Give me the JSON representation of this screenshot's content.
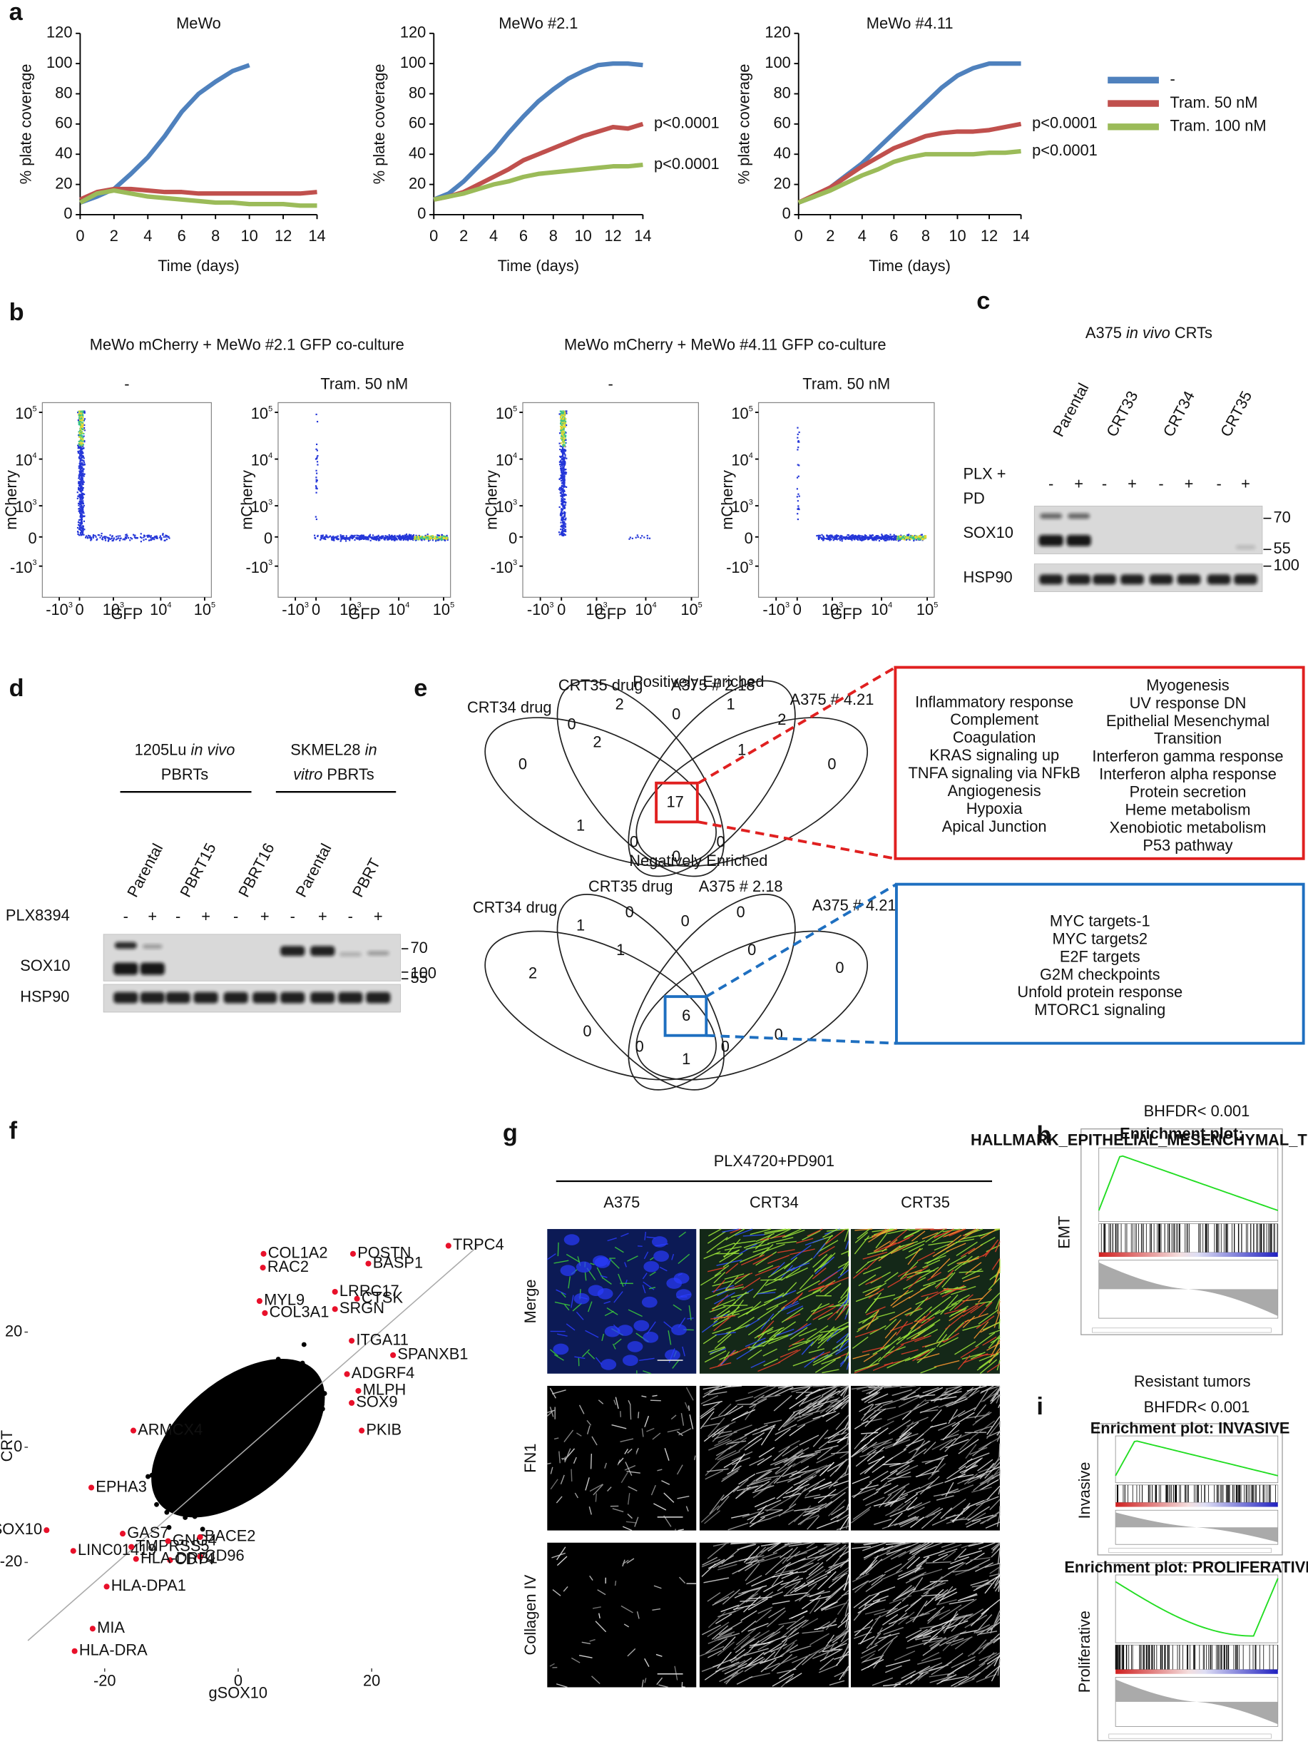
{
  "panel_labels": [
    "a",
    "b",
    "c",
    "d",
    "e",
    "f",
    "g",
    "h",
    "i"
  ],
  "chart_data": [
    {
      "type": "line",
      "title": "MeWo",
      "xlabel": "Time (days)",
      "ylabel": "% plate coverage",
      "x": [
        0,
        1,
        2,
        3,
        4,
        5,
        6,
        7,
        8,
        9,
        10,
        11,
        12,
        13,
        14
      ],
      "xlim": [
        0,
        14
      ],
      "ylim": [
        0,
        120
      ],
      "xticks": [
        0,
        2,
        4,
        6,
        8,
        10,
        12,
        14
      ],
      "yticks": [
        0,
        20,
        40,
        60,
        80,
        100,
        120
      ],
      "series": [
        {
          "name": "-",
          "color": "#4f81bd",
          "values": [
            8,
            12,
            17,
            27,
            38,
            52,
            68,
            80,
            88,
            95,
            99,
            null,
            null,
            null,
            null
          ]
        },
        {
          "name": "Tram. 50 nM",
          "color": "#c0504d",
          "values": [
            10,
            15,
            17,
            17,
            16,
            15,
            15,
            14,
            14,
            14,
            14,
            14,
            14,
            14,
            15
          ]
        },
        {
          "name": "Tram. 100 nM",
          "color": "#9bbb59",
          "values": [
            8,
            14,
            16,
            14,
            12,
            11,
            10,
            9,
            8,
            8,
            7,
            7,
            7,
            6,
            6
          ]
        }
      ]
    },
    {
      "type": "line",
      "title": "MeWo #2.1",
      "xlabel": "Time (days)",
      "ylabel": "% plate coverage",
      "x": [
        0,
        1,
        2,
        3,
        4,
        5,
        6,
        7,
        8,
        9,
        10,
        11,
        12,
        13,
        14
      ],
      "xlim": [
        0,
        14
      ],
      "ylim": [
        0,
        120
      ],
      "xticks": [
        0,
        2,
        4,
        6,
        8,
        10,
        12,
        14
      ],
      "yticks": [
        0,
        20,
        40,
        60,
        80,
        100,
        120
      ],
      "series": [
        {
          "name": "-",
          "color": "#4f81bd",
          "values": [
            10,
            14,
            22,
            32,
            42,
            54,
            65,
            75,
            83,
            90,
            95,
            99,
            100,
            100,
            99
          ]
        },
        {
          "name": "Tram. 50 nM",
          "color": "#c0504d",
          "values": [
            10,
            12,
            15,
            20,
            25,
            30,
            36,
            40,
            44,
            48,
            52,
            55,
            58,
            57,
            60
          ]
        },
        {
          "name": "Tram. 100 nM",
          "color": "#9bbb59",
          "values": [
            10,
            12,
            14,
            17,
            20,
            22,
            25,
            27,
            28,
            29,
            30,
            31,
            32,
            32,
            33
          ]
        }
      ],
      "annotations": [
        "p<0.0001",
        "p<0.0001"
      ]
    },
    {
      "type": "line",
      "title": "MeWo #4.11",
      "xlabel": "Time (days)",
      "ylabel": "% plate coverage",
      "x": [
        0,
        1,
        2,
        3,
        4,
        5,
        6,
        7,
        8,
        9,
        10,
        11,
        12,
        13,
        14
      ],
      "xlim": [
        0,
        14
      ],
      "ylim": [
        0,
        120
      ],
      "xticks": [
        0,
        2,
        4,
        6,
        8,
        10,
        12,
        14
      ],
      "yticks": [
        0,
        20,
        40,
        60,
        80,
        100,
        120
      ],
      "series": [
        {
          "name": "-",
          "color": "#4f81bd",
          "values": [
            8,
            12,
            18,
            26,
            34,
            44,
            54,
            64,
            74,
            84,
            92,
            97,
            100,
            100,
            100
          ]
        },
        {
          "name": "Tram. 50 nM",
          "color": "#c0504d",
          "values": [
            8,
            13,
            18,
            25,
            32,
            38,
            44,
            48,
            52,
            54,
            55,
            55,
            56,
            58,
            60
          ]
        },
        {
          "name": "Tram. 100 nM",
          "color": "#9bbb59",
          "values": [
            8,
            12,
            16,
            21,
            26,
            30,
            35,
            38,
            40,
            40,
            40,
            40,
            41,
            41,
            42
          ]
        }
      ],
      "annotations": [
        "p<0.0001",
        "p<0.0001"
      ]
    }
  ],
  "panel_b": {
    "headers": [
      "MeWo mCherry +  MeWo #2.1 GFP co-culture",
      "MeWo mCherry +  MeWo #4.11 GFP co-culture"
    ],
    "conditions": [
      "-",
      "Tram. 50 nM",
      "-",
      "Tram. 50 nM"
    ],
    "xlabel": "GFP",
    "ylabel": "mCherry",
    "yticks": [
      {
        "base": "10",
        "exp": "5"
      },
      {
        "base": "10",
        "exp": "4"
      },
      {
        "base": "10",
        "exp": "3"
      },
      {
        "base": "0"
      },
      {
        "base": "-10",
        "exp": "3"
      }
    ],
    "xticks": [
      {
        "base": "-10",
        "exp": "3"
      },
      {
        "base": "0"
      },
      {
        "base": "10",
        "exp": "3"
      },
      {
        "base": "10",
        "exp": "4"
      },
      {
        "base": "10",
        "exp": "5"
      }
    ]
  },
  "panel_c": {
    "title": [
      "A375 ",
      "in vivo",
      " CRTs"
    ],
    "lanes": [
      "Parental",
      "CRT33",
      "CRT34",
      "CRT35"
    ],
    "treatment": [
      "PLX +",
      "PD"
    ],
    "signs": [
      "-",
      "+",
      "-",
      "+",
      "-",
      "+",
      "-",
      "+"
    ],
    "proteins": [
      "SOX10",
      "HSP90"
    ],
    "markers": [
      "70",
      "55",
      "100"
    ]
  },
  "panel_d": {
    "groups": [
      {
        "line1": [
          "1205Lu ",
          "in vivo"
        ],
        "line2": [
          "PBRTs"
        ]
      },
      {
        "line1": [
          "SKMEL28 ",
          "in"
        ],
        "line2": [
          "vitro",
          " PBRTs"
        ]
      }
    ],
    "lanes": [
      "Parental",
      "PBRT15",
      "PBRT16",
      "Parental",
      "PBRT"
    ],
    "treatment": "PLX8394",
    "signs": [
      "-",
      "+",
      "-",
      "+",
      "-",
      "+",
      "-",
      "+",
      "-",
      "+"
    ],
    "proteins": [
      "SOX10",
      "HSP90"
    ],
    "markers": [
      "70",
      "55",
      "100"
    ]
  },
  "panel_e": {
    "positive": {
      "title": "Positively Enriched",
      "sets": [
        "CRT34 drug",
        "CRT35 drug",
        "A375 # 2.18",
        "A375 # 4.21"
      ],
      "counts": [
        0,
        2,
        0,
        0,
        1,
        2,
        0,
        2,
        1,
        17,
        1,
        0,
        0,
        0
      ],
      "terms": [
        [
          "Inflammatory response",
          "Complement",
          "Coagulation",
          "KRAS signaling up",
          "TNFA signaling via NFkB",
          "Angiogenesis",
          "Hypoxia",
          "Apical Junction"
        ],
        [
          "Myogenesis",
          "UV response DN",
          "Epithelial Mesenchymal",
          "Transition",
          "Interferon gamma response",
          "Interferon alpha response",
          "Protein secretion",
          "Heme metabolism",
          "Xenobiotic metabolism",
          "P53 pathway"
        ]
      ]
    },
    "negative": {
      "title": "Negatively Enriched",
      "sets": [
        "CRT34 drug",
        "CRT35 drug",
        "A375 # 2.18",
        "A375 # 4.21"
      ],
      "counts": [
        1,
        0,
        0,
        0,
        2,
        1,
        0,
        0,
        6,
        0,
        0,
        0,
        0,
        1
      ],
      "terms": [
        [
          "MYC targets-1",
          "MYC targets2",
          "E2F targets",
          "G2M checkpoints",
          "Unfold protein response",
          "MTORC1 signaling"
        ]
      ]
    }
  },
  "panel_f": {
    "xlabel": "gSOX10",
    "ylabel": "CRT",
    "xlim": [
      -31.5,
      37.3
    ],
    "ylim": [
      -38.4,
      40.8
    ],
    "xticks": [
      -20,
      0,
      20
    ],
    "yticks": [
      -20,
      0,
      20
    ],
    "genes": [
      {
        "name": "COL1A2",
        "x": 3.8,
        "y": 33.6,
        "color": "#111111"
      },
      {
        "name": "RAC2",
        "x": 3.7,
        "y": 31.2,
        "color": "#111111"
      },
      {
        "name": "POSTN",
        "x": 17.2,
        "y": 33.6,
        "color": "#e8102a"
      },
      {
        "name": "BASP1",
        "x": 19.5,
        "y": 31.9,
        "color": "#e8102a"
      },
      {
        "name": "TRPC4",
        "x": 31.5,
        "y": 35,
        "color": "#e8102a"
      },
      {
        "name": "MYL9",
        "x": 3.2,
        "y": 25.4,
        "color": "#111111"
      },
      {
        "name": "COL3A1",
        "x": 4,
        "y": 23.3,
        "color": "#111111"
      },
      {
        "name": "LRRC17",
        "x": 14.5,
        "y": 27,
        "color": "#111111"
      },
      {
        "name": "CTSK",
        "x": 17.8,
        "y": 25.8,
        "color": "#e8102a"
      },
      {
        "name": "SRGN",
        "x": 14.5,
        "y": 24,
        "color": "#111111"
      },
      {
        "name": "ITGA11",
        "x": 17,
        "y": 18.5,
        "color": "#111111"
      },
      {
        "name": "SPANXB1",
        "x": 23.2,
        "y": 16,
        "color": "#111111"
      },
      {
        "name": "ADGRF4",
        "x": 16.3,
        "y": 12.7,
        "color": "#111111"
      },
      {
        "name": "MLPH",
        "x": 18,
        "y": 9.8,
        "color": "#111111"
      },
      {
        "name": "SOX9",
        "x": 17,
        "y": 7.7,
        "color": "#111111"
      },
      {
        "name": "PKIB",
        "x": 18.5,
        "y": 2.9,
        "color": "#111111"
      },
      {
        "name": "ARMCX4",
        "x": -15.7,
        "y": 2.9,
        "color": "#111111"
      },
      {
        "name": "EPHA3",
        "x": -22,
        "y": -7,
        "color": "#111111"
      },
      {
        "name": "SOX10",
        "x": -28.7,
        "y": -14.4,
        "color": "#111111"
      },
      {
        "name": "GAS7",
        "x": -17.3,
        "y": -15,
        "color": "#111111"
      },
      {
        "name": "LINC01419",
        "x": -24.7,
        "y": -18,
        "color": "#e8102a"
      },
      {
        "name": "TMPRSS5",
        "x": -16,
        "y": -17.3,
        "color": "#e8102a"
      },
      {
        "name": "GNG4",
        "x": -10.5,
        "y": -16.3,
        "color": "#111111"
      },
      {
        "name": "BACE2",
        "x": -5.7,
        "y": -15.6,
        "color": "#111111"
      },
      {
        "name": "CD74",
        "x": -10.2,
        "y": -19.6,
        "color": "#111111"
      },
      {
        "name": "CD96",
        "x": -5.7,
        "y": -19,
        "color": "#111111"
      },
      {
        "name": "HLA-DRB1",
        "x": -15.3,
        "y": -19.4,
        "color": "#111111"
      },
      {
        "name": "HLA-DPA1",
        "x": -19.7,
        "y": -24.2,
        "color": "#e8102a"
      },
      {
        "name": "MIA",
        "x": -21.8,
        "y": -31.5,
        "color": "#e8102a"
      },
      {
        "name": "HLA-DRA",
        "x": -24.5,
        "y": -35.4,
        "color": "#e8102a"
      }
    ]
  },
  "panel_g": {
    "title": "PLX4720+PD901",
    "columns": [
      "A375",
      "CRT34",
      "CRT35"
    ],
    "rows": [
      "Merge",
      "FN1",
      "Collagen IV"
    ]
  },
  "panel_h": {
    "title": "BHFDR< 0.001",
    "label": "EMT",
    "plot_title": [
      "Enrichment plot:",
      "HALLMARK_EPITHELIAL_MESENCHYMAL_TRANSITION"
    ]
  },
  "panel_i": {
    "title": "Resistant tumors",
    "subtitle": "BHFDR< 0.001",
    "plots": [
      {
        "label": "Invasive",
        "plot_title": "Enrichment plot: INVASIVE"
      },
      {
        "label": "Proliferative",
        "plot_title": "Enrichment plot: PROLIFERATIVE"
      }
    ]
  }
}
